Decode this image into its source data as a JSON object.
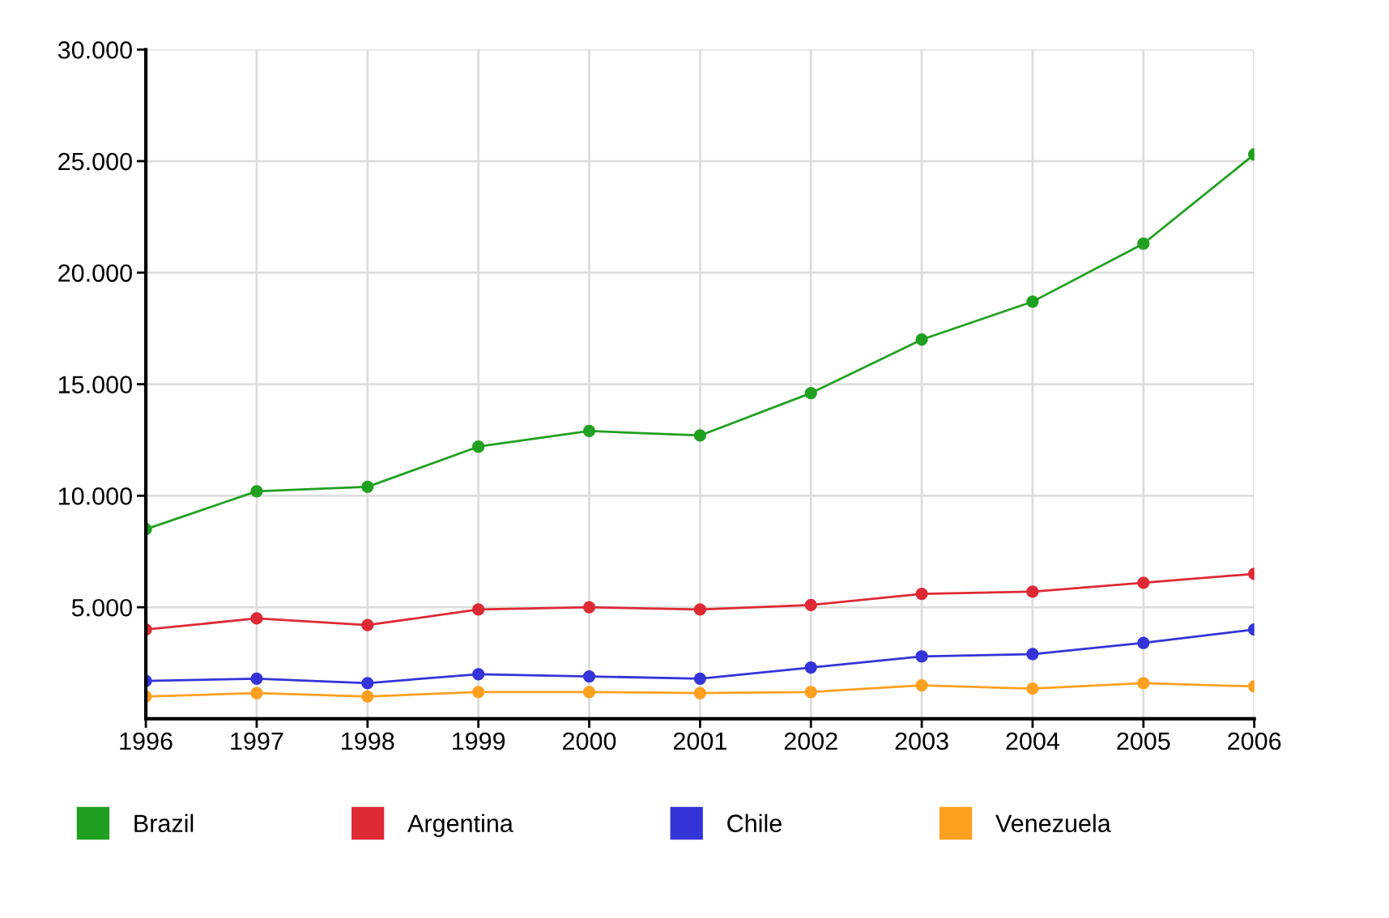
{
  "chart_data": {
    "type": "line",
    "categories": [
      "1996",
      "1997",
      "1998",
      "1999",
      "2000",
      "2001",
      "2002",
      "2003",
      "2004",
      "2005",
      "2006"
    ],
    "series": [
      {
        "name": "Brazil",
        "color": "#20a020",
        "values": [
          8500,
          10200,
          10400,
          12200,
          12900,
          12700,
          14600,
          17000,
          18700,
          21300,
          25300
        ]
      },
      {
        "name": "Argentina",
        "color": "#dd2a35",
        "values": [
          4000,
          4500,
          4200,
          4900,
          5000,
          4900,
          5100,
          5600,
          5700,
          6100,
          6500
        ]
      },
      {
        "name": "Chile",
        "color": "#3434d8",
        "values": [
          1700,
          1800,
          1600,
          2000,
          1900,
          1800,
          2300,
          2800,
          2900,
          3400,
          4000
        ]
      },
      {
        "name": "Venezuela",
        "color": "#ffa020",
        "values": [
          1000,
          1150,
          1000,
          1200,
          1200,
          1150,
          1200,
          1500,
          1350,
          1600,
          1450
        ]
      }
    ],
    "ylim": [
      0,
      30000
    ],
    "yticks": [
      {
        "value": 5000,
        "label": "5.000"
      },
      {
        "value": 10000,
        "label": "10.000"
      },
      {
        "value": 15000,
        "label": "15.000"
      },
      {
        "value": 20000,
        "label": "20.000"
      },
      {
        "value": 25000,
        "label": "25.000"
      },
      {
        "value": 30000,
        "label": "30.000"
      }
    ],
    "grid": true,
    "legend": "bottom",
    "marker": "circle",
    "line_style": "solid"
  }
}
